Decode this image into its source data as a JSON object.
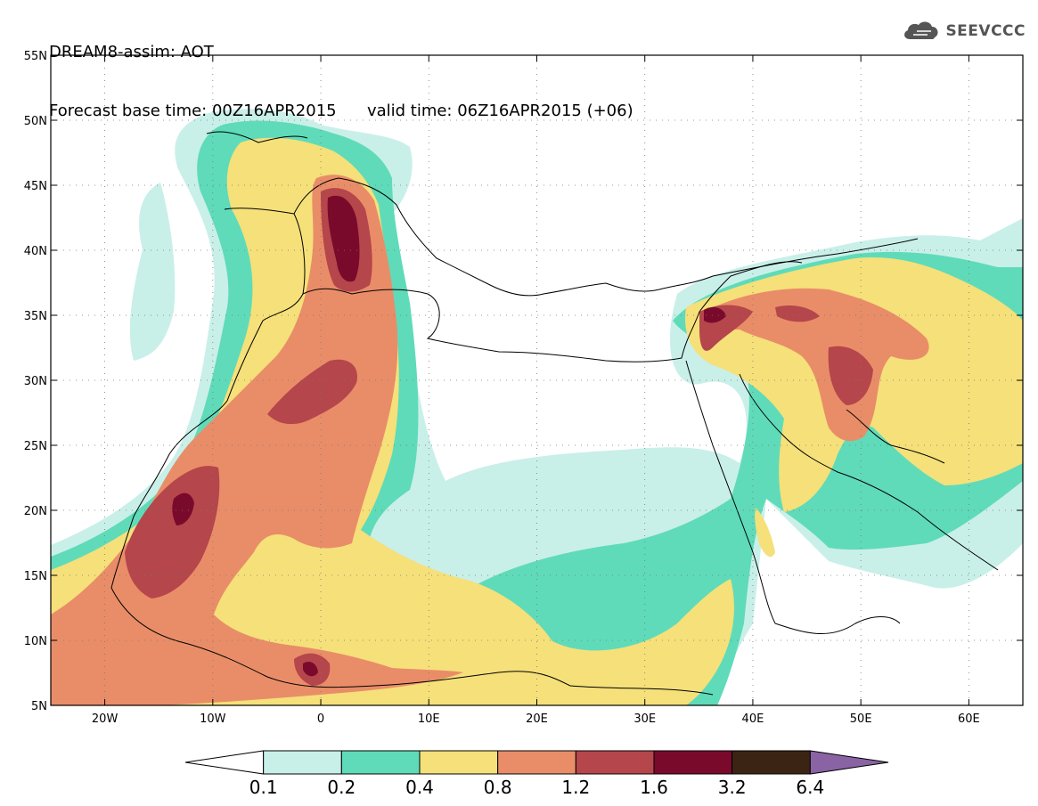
{
  "title": {
    "line1": "DREAM8-assim: AOT",
    "base_time_label": "Forecast base time: 00Z16APR2015",
    "valid_time_label": "valid time: 06Z16APR2015 (+06)"
  },
  "logo": {
    "text": "SEEVCCC",
    "icon": "cloud-icon"
  },
  "map": {
    "lon_range": [
      -25,
      65
    ],
    "lat_range": [
      5,
      55
    ],
    "lon_ticks": [
      {
        "v": -20,
        "label": "20W"
      },
      {
        "v": -10,
        "label": "10W"
      },
      {
        "v": 0,
        "label": "0"
      },
      {
        "v": 10,
        "label": "10E"
      },
      {
        "v": 20,
        "label": "20E"
      },
      {
        "v": 30,
        "label": "30E"
      },
      {
        "v": 40,
        "label": "40E"
      },
      {
        "v": 50,
        "label": "50E"
      },
      {
        "v": 60,
        "label": "60E"
      }
    ],
    "lat_ticks": [
      {
        "v": 5,
        "label": "5N"
      },
      {
        "v": 10,
        "label": "10N"
      },
      {
        "v": 15,
        "label": "15N"
      },
      {
        "v": 20,
        "label": "20N"
      },
      {
        "v": 25,
        "label": "25N"
      },
      {
        "v": 30,
        "label": "30N"
      },
      {
        "v": 35,
        "label": "35N"
      },
      {
        "v": 40,
        "label": "40N"
      },
      {
        "v": 45,
        "label": "45N"
      },
      {
        "v": 50,
        "label": "50N"
      },
      {
        "v": 55,
        "label": "55N"
      }
    ],
    "grid": "dotted"
  },
  "colorbar": {
    "levels": [
      "0.1",
      "0.2",
      "0.4",
      "0.8",
      "1.2",
      "1.6",
      "3.2",
      "6.4"
    ],
    "colors": [
      "#ffffff",
      "#c9efe9",
      "#5fdbb9",
      "#f5e07a",
      "#e98d68",
      "#b5464b",
      "#7a0a2c",
      "#3c2415",
      "#8a63a4"
    ]
  },
  "colors": {
    "c1": "#c9efe9",
    "c2": "#5fdbb9",
    "c3": "#f5e07a",
    "c4": "#e98d68",
    "c5": "#b5464b",
    "c6": "#7a0a2c"
  }
}
